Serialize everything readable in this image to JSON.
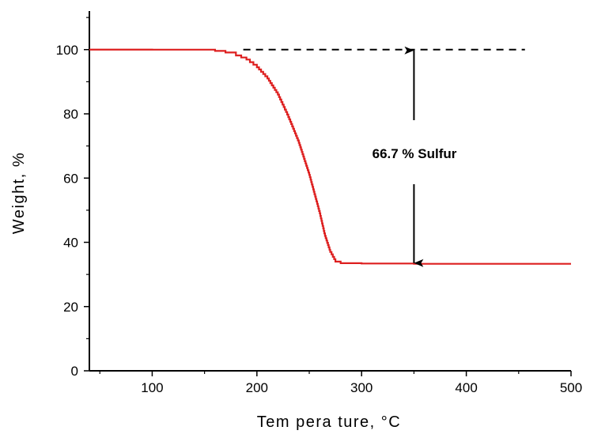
{
  "chart_data": {
    "type": "line",
    "xlabel": "Tem pera ture,  °C",
    "ylabel": "Weight, %",
    "xlim": [
      40,
      500
    ],
    "ylim": [
      0,
      112
    ],
    "x_ticks": [
      100,
      200,
      300,
      400,
      500
    ],
    "y_ticks": [
      0,
      20,
      40,
      60,
      80,
      100
    ],
    "grid": false,
    "series": [
      {
        "color": "#dd1f1f",
        "x": [
          40,
          100,
          148,
          160,
          170,
          180,
          190,
          200,
          210,
          220,
          230,
          240,
          250,
          255,
          260,
          265,
          270,
          275,
          280,
          300,
          350,
          400,
          450,
          500
        ],
        "y": [
          100,
          100,
          100,
          99.6,
          99.1,
          98.2,
          96.9,
          94.5,
          91,
          86,
          79,
          71,
          61,
          55,
          49,
          42,
          37,
          34,
          33.5,
          33.4,
          33.3,
          33.3,
          33.3,
          33.3
        ]
      }
    ],
    "reference_line": {
      "y": 100,
      "x_start": 187,
      "x_end": 456,
      "style": "dashed",
      "color": "#000000"
    },
    "annotation": {
      "text": "66.7 % Sulfur",
      "arrow_x": 350,
      "arrow_top": 100,
      "arrow_bottom": 33.3
    }
  }
}
